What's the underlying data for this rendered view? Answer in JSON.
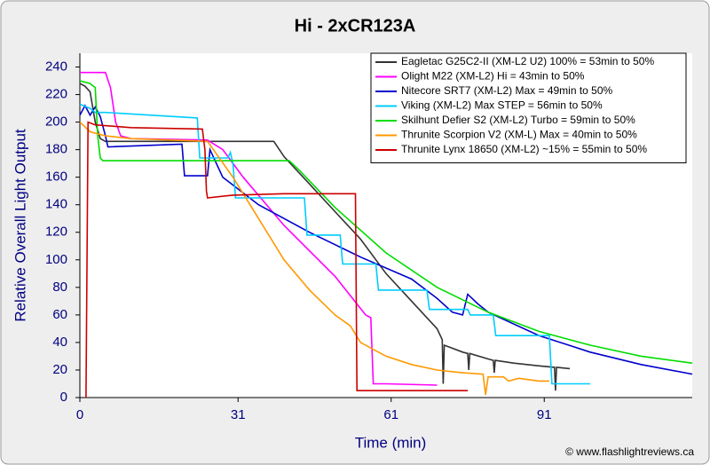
{
  "chart_data": {
    "type": "line",
    "title": "Hi - 2xCR123A",
    "x_label": "Time (min)",
    "y_label": "Relative Overall Light Output",
    "source": "© www.flashlightreviews.ca",
    "xlim": [
      0,
      120
    ],
    "xticks": [
      0,
      31,
      61,
      91
    ],
    "ylim": [
      0,
      250
    ],
    "yticks": [
      0,
      20,
      40,
      60,
      80,
      100,
      120,
      140,
      160,
      180,
      200,
      220,
      240
    ],
    "grid": false,
    "legend": "upper right",
    "series": [
      {
        "name": "Eagletac G25C2-II (XM-L2 U2) 100% = 53min to 50%",
        "color": "#333333",
        "x": [
          0,
          1,
          2,
          3,
          4,
          5,
          38,
          40,
          45,
          50,
          55,
          60,
          65,
          70,
          71,
          71.2,
          71.4,
          75,
          76,
          76.2,
          76.4,
          80,
          81,
          81.2,
          81.4,
          85,
          90,
          93,
          93.2,
          93.4,
          96
        ],
        "values": [
          228,
          226,
          222,
          200,
          188,
          186,
          186,
          175,
          155,
          135,
          115,
          90,
          70,
          50,
          42,
          10,
          38,
          33,
          32,
          20,
          32,
          28,
          27,
          18,
          27,
          25,
          23,
          22,
          5,
          22,
          21
        ]
      },
      {
        "name": "Olight M22 (XM-L2) Hi = 43min to 50%",
        "color": "#FF00FF",
        "x": [
          0,
          5,
          6,
          7,
          8,
          10,
          25,
          28,
          32,
          40,
          50,
          56,
          57,
          57.5,
          60,
          70
        ],
        "values": [
          236,
          236,
          225,
          200,
          190,
          188,
          187,
          180,
          160,
          125,
          88,
          60,
          58,
          10,
          10,
          9
        ]
      },
      {
        "name": "Nitecore SRT7 (XM-L2) Max = 49min to 50%",
        "color": "#0000CC",
        "x": [
          0,
          1,
          2,
          3,
          4,
          5,
          5.5,
          20,
          20.5,
          25,
          25.5,
          28,
          35,
          45,
          55,
          65,
          70,
          73,
          75,
          76,
          78,
          80,
          90,
          100,
          110,
          120
        ],
        "values": [
          205,
          212,
          205,
          211,
          204,
          190,
          182,
          184,
          161,
          161,
          180,
          160,
          140,
          120,
          102,
          86,
          72,
          62,
          60,
          75,
          68,
          62,
          45,
          33,
          24,
          17
        ]
      },
      {
        "name": "Viking (XM-L2) Max STEP = 56min to 50%",
        "color": "#00CCFF",
        "x": [
          0,
          2,
          3,
          5,
          23,
          23.5,
          29,
          29.5,
          30,
          30.5,
          44,
          44.5,
          51,
          51.5,
          58,
          58.5,
          68,
          68.5,
          76,
          76.5,
          81,
          81.5,
          92,
          92.5,
          100
        ],
        "values": [
          213,
          210,
          207,
          207,
          203,
          174,
          174,
          178,
          170,
          145,
          145,
          118,
          118,
          97,
          97,
          78,
          78,
          64,
          64,
          60,
          60,
          45,
          45,
          10,
          10
        ]
      },
      {
        "name": "Skilhunt Defier S2 (XM-L2) Turbo = 59min to 50%",
        "color": "#00DD00",
        "x": [
          0,
          2,
          3,
          3.5,
          4,
          4.5,
          41,
          43,
          50,
          60,
          70,
          80,
          90,
          100,
          110,
          120
        ],
        "values": [
          230,
          228,
          225,
          190,
          174,
          172,
          172,
          165,
          138,
          105,
          80,
          62,
          48,
          38,
          30,
          25
        ]
      },
      {
        "name": "Thrunite Scorpion V2 (XM-L) Max = 40min to 50%",
        "color": "#FF9900",
        "x": [
          0,
          2,
          5,
          10,
          25,
          30,
          35,
          40,
          45,
          50,
          53,
          55,
          60,
          65,
          70,
          75,
          79,
          79.5,
          80,
          83,
          84,
          86,
          90,
          92
        ],
        "values": [
          200,
          193,
          190,
          188,
          186,
          160,
          130,
          100,
          78,
          60,
          52,
          40,
          30,
          24,
          20,
          18,
          17,
          2,
          15,
          15,
          12,
          14,
          12,
          12
        ]
      },
      {
        "name": "Thrunite Lynx 18650 (XM-L2) ~15% = 55min to 50%",
        "color": "#CC0000",
        "x": [
          1.2,
          1.6,
          3,
          10,
          24,
          24.5,
          24.8,
          25,
          30,
          40,
          54,
          54.3,
          60,
          76
        ],
        "values": [
          0,
          200,
          198,
          196,
          195,
          180,
          150,
          145,
          147,
          148,
          148,
          5,
          5,
          5
        ]
      }
    ]
  }
}
